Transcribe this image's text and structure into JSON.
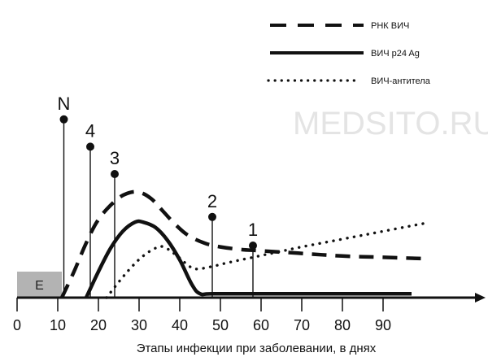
{
  "chart_data": {
    "type": "line",
    "title": "",
    "xlabel": "Этапы инфекции при заболевании, в днях",
    "ylabel": "",
    "xlim": [
      0,
      100
    ],
    "ylim": [
      0,
      100
    ],
    "grid": false,
    "legend_position": "top-right",
    "x_ticks": [
      0,
      10,
      20,
      30,
      40,
      50,
      60,
      70,
      80,
      90
    ],
    "x_tick_labels": [
      "0",
      "10",
      "20",
      "30",
      "40",
      "50",
      "60",
      "70",
      "80",
      "90"
    ],
    "eclipse_region": {
      "label": "E",
      "x_start": 0,
      "x_end": 11,
      "color": "#b3b3b3"
    },
    "series": [
      {
        "name": "РНК ВИЧ",
        "style": "dashed",
        "points": [
          [
            11,
            0
          ],
          [
            14,
            20
          ],
          [
            17,
            42
          ],
          [
            20,
            60
          ],
          [
            24,
            74
          ],
          [
            27,
            80
          ],
          [
            30,
            81
          ],
          [
            33,
            76
          ],
          [
            36,
            66
          ],
          [
            39,
            56
          ],
          [
            42,
            48
          ],
          [
            46,
            42
          ],
          [
            50,
            39
          ],
          [
            55,
            37
          ],
          [
            60,
            36
          ],
          [
            70,
            34
          ],
          [
            80,
            32
          ],
          [
            90,
            31
          ],
          [
            100,
            30
          ]
        ]
      },
      {
        "name": "ВИЧ p24 Ag",
        "style": "solid",
        "points": [
          [
            17,
            0
          ],
          [
            20,
            20
          ],
          [
            23,
            38
          ],
          [
            26,
            51
          ],
          [
            29,
            58
          ],
          [
            31,
            58
          ],
          [
            34,
            54
          ],
          [
            37,
            44
          ],
          [
            40,
            29
          ],
          [
            43,
            10
          ],
          [
            45,
            3
          ],
          [
            48,
            3
          ],
          [
            60,
            3
          ],
          [
            80,
            3
          ],
          [
            97,
            3
          ]
        ]
      },
      {
        "name": "ВИЧ-антитела",
        "style": "dotted",
        "points": [
          [
            22,
            0
          ],
          [
            25,
            12
          ],
          [
            28,
            23
          ],
          [
            31,
            32
          ],
          [
            34,
            38
          ],
          [
            36,
            39
          ],
          [
            39,
            33
          ],
          [
            42,
            25
          ],
          [
            44,
            22
          ],
          [
            48,
            24
          ],
          [
            52,
            27
          ],
          [
            58,
            31
          ],
          [
            64,
            35
          ],
          [
            70,
            39
          ],
          [
            80,
            45
          ],
          [
            90,
            51
          ],
          [
            100,
            57
          ]
        ]
      }
    ],
    "markers": [
      {
        "label": "N",
        "x": 11.5,
        "top": 137
      },
      {
        "label": "4",
        "x": 18,
        "top": 116
      },
      {
        "label": "3",
        "x": 24,
        "top": 95
      },
      {
        "label": "2",
        "x": 48,
        "top": 62
      },
      {
        "label": "1",
        "x": 58,
        "top": 40
      }
    ],
    "watermark": "MEDSITO.RU"
  }
}
